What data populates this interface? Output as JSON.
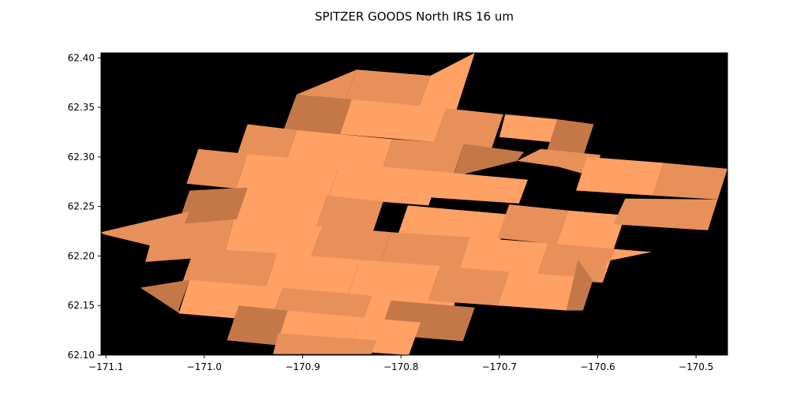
{
  "chart_data": {
    "type": "heatmap",
    "title": "SPITZER GOODS North IRS 16 um",
    "xlabel": "",
    "ylabel": "",
    "xlim": [
      -171.105,
      -170.468
    ],
    "ylim": [
      62.1,
      62.405
    ],
    "x_ticks": [
      -171.1,
      -171.0,
      -170.9,
      -170.8,
      -170.7,
      -170.6,
      -170.5
    ],
    "x_tick_labels": [
      "−171.1",
      "−171.0",
      "−170.9",
      "−170.8",
      "−170.7",
      "−170.6",
      "−170.5"
    ],
    "y_ticks": [
      62.1,
      62.15,
      62.2,
      62.25,
      62.3,
      62.35,
      62.4
    ],
    "y_tick_labels": [
      "62.10",
      "62.15",
      "62.20",
      "62.25",
      "62.30",
      "62.35",
      "62.40"
    ],
    "background_color": "#000000",
    "colors": {
      "light": "#ffa064",
      "mid": "#e8905a",
      "dark": "#c47848"
    },
    "footprints": [
      {
        "shade": "mid",
        "corners": [
          [
            -170.845,
            62.388
          ],
          [
            -170.77,
            62.382
          ],
          [
            -170.783,
            62.348
          ],
          [
            -170.858,
            62.353
          ]
        ]
      },
      {
        "shade": "light",
        "corners": [
          [
            -170.77,
            62.382
          ],
          [
            -170.725,
            62.405
          ],
          [
            -170.745,
            62.343
          ],
          [
            -170.783,
            62.348
          ]
        ]
      },
      {
        "shade": "mid",
        "corners": [
          [
            -170.906,
            62.363
          ],
          [
            -170.845,
            62.388
          ],
          [
            -170.858,
            62.353
          ],
          [
            -170.919,
            62.328
          ]
        ]
      },
      {
        "shade": "dark",
        "corners": [
          [
            -170.906,
            62.363
          ],
          [
            -170.85,
            62.358
          ],
          [
            -170.862,
            62.323
          ],
          [
            -170.919,
            62.328
          ]
        ]
      },
      {
        "shade": "light",
        "corners": [
          [
            -170.85,
            62.358
          ],
          [
            -170.754,
            62.349
          ],
          [
            -170.766,
            62.315
          ],
          [
            -170.862,
            62.323
          ]
        ]
      },
      {
        "shade": "mid",
        "corners": [
          [
            -170.754,
            62.349
          ],
          [
            -170.696,
            62.343
          ],
          [
            -170.708,
            62.308
          ],
          [
            -170.766,
            62.315
          ]
        ]
      },
      {
        "shade": "light",
        "corners": [
          [
            -170.694,
            62.343
          ],
          [
            -170.641,
            62.338
          ],
          [
            -170.648,
            62.315
          ],
          [
            -170.7,
            62.32
          ]
        ]
      },
      {
        "shade": "dark",
        "corners": [
          [
            -170.641,
            62.338
          ],
          [
            -170.604,
            62.333
          ],
          [
            -170.615,
            62.3
          ],
          [
            -170.652,
            62.305
          ]
        ]
      },
      {
        "shade": "mid",
        "corners": [
          [
            -170.956,
            62.333
          ],
          [
            -170.906,
            62.327
          ],
          [
            -170.918,
            62.292
          ],
          [
            -170.968,
            62.298
          ]
        ]
      },
      {
        "shade": "light",
        "corners": [
          [
            -170.906,
            62.327
          ],
          [
            -170.809,
            62.318
          ],
          [
            -170.82,
            62.283
          ],
          [
            -170.918,
            62.292
          ]
        ]
      },
      {
        "shade": "mid",
        "corners": [
          [
            -170.809,
            62.318
          ],
          [
            -170.736,
            62.313
          ],
          [
            -170.748,
            62.278
          ],
          [
            -170.82,
            62.283
          ]
        ]
      },
      {
        "shade": "dark",
        "corners": [
          [
            -170.736,
            62.313
          ],
          [
            -170.675,
            62.305
          ],
          [
            -170.682,
            62.296
          ],
          [
            -170.747,
            62.28
          ]
        ]
      },
      {
        "shade": "mid",
        "corners": [
          [
            -170.658,
            62.308
          ],
          [
            -170.597,
            62.302
          ],
          [
            -170.604,
            62.28
          ],
          [
            -170.64,
            62.29
          ],
          [
            -170.682,
            62.296
          ]
        ]
      },
      {
        "shade": "mid",
        "corners": [
          [
            -171.006,
            62.308
          ],
          [
            -170.956,
            62.303
          ],
          [
            -170.968,
            62.268
          ],
          [
            -171.018,
            62.273
          ]
        ]
      },
      {
        "shade": "light",
        "corners": [
          [
            -170.956,
            62.303
          ],
          [
            -170.862,
            62.294
          ],
          [
            -170.874,
            62.259
          ],
          [
            -170.968,
            62.268
          ]
        ]
      },
      {
        "shade": "light",
        "corners": [
          [
            -170.862,
            62.294
          ],
          [
            -170.76,
            62.285
          ],
          [
            -170.772,
            62.251
          ],
          [
            -170.874,
            62.259
          ]
        ]
      },
      {
        "shade": "light",
        "corners": [
          [
            -170.76,
            62.285
          ],
          [
            -170.671,
            62.277
          ],
          [
            -170.68,
            62.253
          ],
          [
            -170.77,
            62.259
          ]
        ]
      },
      {
        "shade": "light",
        "corners": [
          [
            -170.611,
            62.3
          ],
          [
            -170.533,
            62.294
          ],
          [
            -170.544,
            62.261
          ],
          [
            -170.622,
            62.266
          ]
        ]
      },
      {
        "shade": "mid",
        "corners": [
          [
            -170.533,
            62.294
          ],
          [
            -170.468,
            62.288
          ],
          [
            -170.478,
            62.257
          ],
          [
            -170.544,
            62.261
          ]
        ]
      },
      {
        "shade": "dark",
        "corners": [
          [
            -171.015,
            62.266
          ],
          [
            -170.956,
            62.269
          ],
          [
            -170.968,
            62.235
          ],
          [
            -171.027,
            62.231
          ]
        ]
      },
      {
        "shade": "light",
        "corners": [
          [
            -170.956,
            62.269
          ],
          [
            -170.875,
            62.261
          ],
          [
            -170.887,
            62.226
          ],
          [
            -170.968,
            62.235
          ]
        ]
      },
      {
        "shade": "mid",
        "corners": [
          [
            -170.875,
            62.261
          ],
          [
            -170.818,
            62.255
          ],
          [
            -170.83,
            62.22
          ],
          [
            -170.887,
            62.226
          ]
        ]
      },
      {
        "shade": "light",
        "corners": [
          [
            -170.793,
            62.251
          ],
          [
            -170.69,
            62.242
          ],
          [
            -170.702,
            62.208
          ],
          [
            -170.805,
            62.216
          ]
        ]
      },
      {
        "shade": "mid",
        "corners": [
          [
            -170.69,
            62.252
          ],
          [
            -170.63,
            62.246
          ],
          [
            -170.642,
            62.212
          ],
          [
            -170.702,
            62.218
          ]
        ]
      },
      {
        "shade": "light",
        "corners": [
          [
            -170.63,
            62.246
          ],
          [
            -170.572,
            62.241
          ],
          [
            -170.584,
            62.206
          ],
          [
            -170.642,
            62.212
          ]
        ]
      },
      {
        "shade": "mid",
        "corners": [
          [
            -170.572,
            62.258
          ],
          [
            -170.478,
            62.257
          ],
          [
            -170.488,
            62.226
          ],
          [
            -170.584,
            62.232
          ]
        ]
      },
      {
        "shade": "mid",
        "corners": [
          [
            -171.105,
            62.224
          ],
          [
            -171.015,
            62.245
          ],
          [
            -171.032,
            62.205
          ],
          [
            -171.103,
            62.222
          ]
        ]
      },
      {
        "shade": "mid",
        "corners": [
          [
            -171.05,
            62.23
          ],
          [
            -170.97,
            62.237
          ],
          [
            -170.98,
            62.2
          ],
          [
            -171.06,
            62.194
          ]
        ]
      },
      {
        "shade": "light",
        "corners": [
          [
            -170.97,
            62.237
          ],
          [
            -170.88,
            62.23
          ],
          [
            -170.893,
            62.195
          ],
          [
            -170.98,
            62.2
          ]
        ]
      },
      {
        "shade": "mid",
        "corners": [
          [
            -170.88,
            62.23
          ],
          [
            -170.81,
            62.224
          ],
          [
            -170.822,
            62.19
          ],
          [
            -170.893,
            62.195
          ]
        ]
      },
      {
        "shade": "mid",
        "corners": [
          [
            -170.81,
            62.224
          ],
          [
            -170.73,
            62.219
          ],
          [
            -170.742,
            62.184
          ],
          [
            -170.822,
            62.19
          ]
        ]
      },
      {
        "shade": "light",
        "corners": [
          [
            -170.73,
            62.219
          ],
          [
            -170.65,
            62.213
          ],
          [
            -170.662,
            62.178
          ],
          [
            -170.742,
            62.184
          ]
        ]
      },
      {
        "shade": "mid",
        "corners": [
          [
            -170.65,
            62.213
          ],
          [
            -170.583,
            62.207
          ],
          [
            -170.595,
            62.173
          ],
          [
            -170.662,
            62.178
          ]
        ]
      },
      {
        "shade": "light",
        "corners": [
          [
            -170.583,
            62.207
          ],
          [
            -170.545,
            62.204
          ],
          [
            -170.59,
            62.195
          ],
          [
            -170.595,
            62.173
          ]
        ]
      },
      {
        "shade": "mid",
        "corners": [
          [
            -171.01,
            62.208
          ],
          [
            -170.926,
            62.203
          ],
          [
            -170.938,
            62.168
          ],
          [
            -171.022,
            62.174
          ]
        ]
      },
      {
        "shade": "light",
        "corners": [
          [
            -170.926,
            62.203
          ],
          [
            -170.842,
            62.196
          ],
          [
            -170.854,
            62.161
          ],
          [
            -170.938,
            62.168
          ]
        ]
      },
      {
        "shade": "light",
        "corners": [
          [
            -170.842,
            62.196
          ],
          [
            -170.76,
            62.19
          ],
          [
            -170.772,
            62.155
          ],
          [
            -170.854,
            62.161
          ]
        ]
      },
      {
        "shade": "mid",
        "corners": [
          [
            -170.76,
            62.19
          ],
          [
            -170.69,
            62.184
          ],
          [
            -170.702,
            62.15
          ],
          [
            -170.772,
            62.155
          ]
        ]
      },
      {
        "shade": "light",
        "corners": [
          [
            -170.69,
            62.184
          ],
          [
            -170.62,
            62.179
          ],
          [
            -170.632,
            62.145
          ],
          [
            -170.702,
            62.15
          ]
        ]
      },
      {
        "shade": "dark",
        "corners": [
          [
            -170.62,
            62.196
          ],
          [
            -170.605,
            62.175
          ],
          [
            -170.615,
            62.145
          ],
          [
            -170.632,
            62.145
          ]
        ]
      },
      {
        "shade": "dark",
        "corners": [
          [
            -171.065,
            62.168
          ],
          [
            -171.015,
            62.176
          ],
          [
            -171.026,
            62.146
          ],
          [
            -171.025,
            62.142
          ]
        ]
      },
      {
        "shade": "light",
        "corners": [
          [
            -171.015,
            62.176
          ],
          [
            -170.92,
            62.168
          ],
          [
            -170.932,
            62.134
          ],
          [
            -171.026,
            62.142
          ]
        ]
      },
      {
        "shade": "mid",
        "corners": [
          [
            -170.92,
            62.168
          ],
          [
            -170.83,
            62.16
          ],
          [
            -170.842,
            62.126
          ],
          [
            -170.932,
            62.134
          ]
        ]
      },
      {
        "shade": "light",
        "corners": [
          [
            -170.83,
            62.16
          ],
          [
            -170.745,
            62.153
          ],
          [
            -170.757,
            62.119
          ],
          [
            -170.842,
            62.126
          ]
        ]
      },
      {
        "shade": "dark",
        "corners": [
          [
            -170.81,
            62.155
          ],
          [
            -170.725,
            62.148
          ],
          [
            -170.737,
            62.114
          ],
          [
            -170.822,
            62.121
          ]
        ]
      },
      {
        "shade": "dark",
        "corners": [
          [
            -170.965,
            62.15
          ],
          [
            -170.915,
            62.145
          ],
          [
            -170.927,
            62.11
          ],
          [
            -170.977,
            62.115
          ]
        ]
      },
      {
        "shade": "light",
        "corners": [
          [
            -170.915,
            62.145
          ],
          [
            -170.84,
            62.138
          ],
          [
            -170.852,
            62.104
          ],
          [
            -170.927,
            62.11
          ]
        ]
      },
      {
        "shade": "light",
        "corners": [
          [
            -170.84,
            62.138
          ],
          [
            -170.78,
            62.133
          ],
          [
            -170.792,
            62.099
          ],
          [
            -170.852,
            62.104
          ]
        ]
      },
      {
        "shade": "mid",
        "corners": [
          [
            -170.925,
            62.122
          ],
          [
            -170.825,
            62.115
          ],
          [
            -170.83,
            62.101
          ],
          [
            -170.93,
            62.101
          ]
        ]
      }
    ]
  }
}
